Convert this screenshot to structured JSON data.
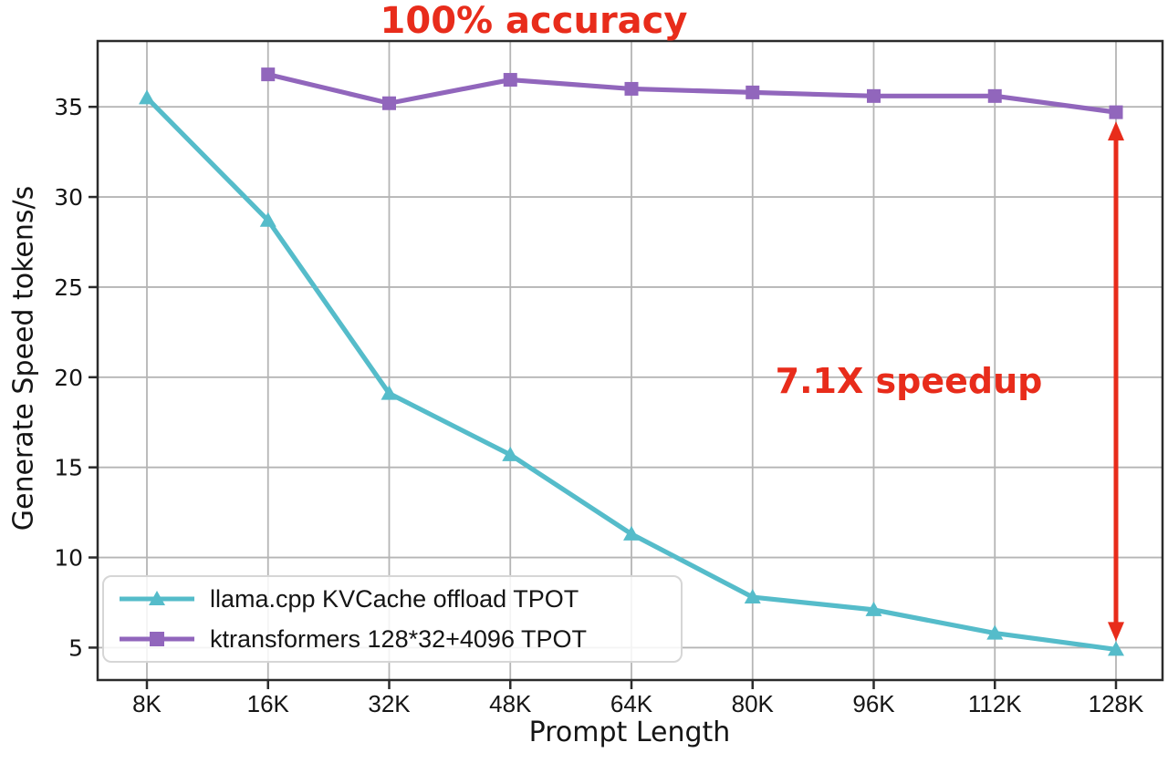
{
  "chart_data": {
    "type": "line",
    "title": "100% accuracy",
    "title_color": "#e82c1b",
    "xlabel": "Prompt Length",
    "ylabel": "Generate Speed tokens/s",
    "categories": [
      "8K",
      "16K",
      "32K",
      "48K",
      "64K",
      "80K",
      "96K",
      "112K",
      "128K"
    ],
    "yticks": [
      5,
      10,
      15,
      20,
      25,
      30,
      35
    ],
    "ylim": [
      3.2,
      38.6
    ],
    "grid": true,
    "legend_position": "lower-left",
    "series": [
      {
        "name": "llama.cpp KVCache offload TPOT",
        "color": "#55bcca",
        "marker": "triangle",
        "values": [
          35.5,
          28.7,
          19.1,
          15.7,
          11.3,
          7.8,
          7.1,
          5.8,
          4.9
        ]
      },
      {
        "name": "ktransformers 128*32+4096 TPOT",
        "color": "#9166bc",
        "marker": "square",
        "values": [
          null,
          36.8,
          35.2,
          36.5,
          36.0,
          35.8,
          35.6,
          35.6,
          34.7
        ]
      }
    ],
    "annotations": {
      "speedup": {
        "text": "7.1X speedup",
        "color": "#e82c1b"
      },
      "speedup_arrow": {
        "x": "128K",
        "from_value": 4.9,
        "to_value": 34.7,
        "color": "#e82c1b",
        "style": "double-headed-vertical"
      }
    },
    "axis_color": "#2b2b2b",
    "grid_color": "#b5b5b5",
    "text_color": "#151515"
  }
}
